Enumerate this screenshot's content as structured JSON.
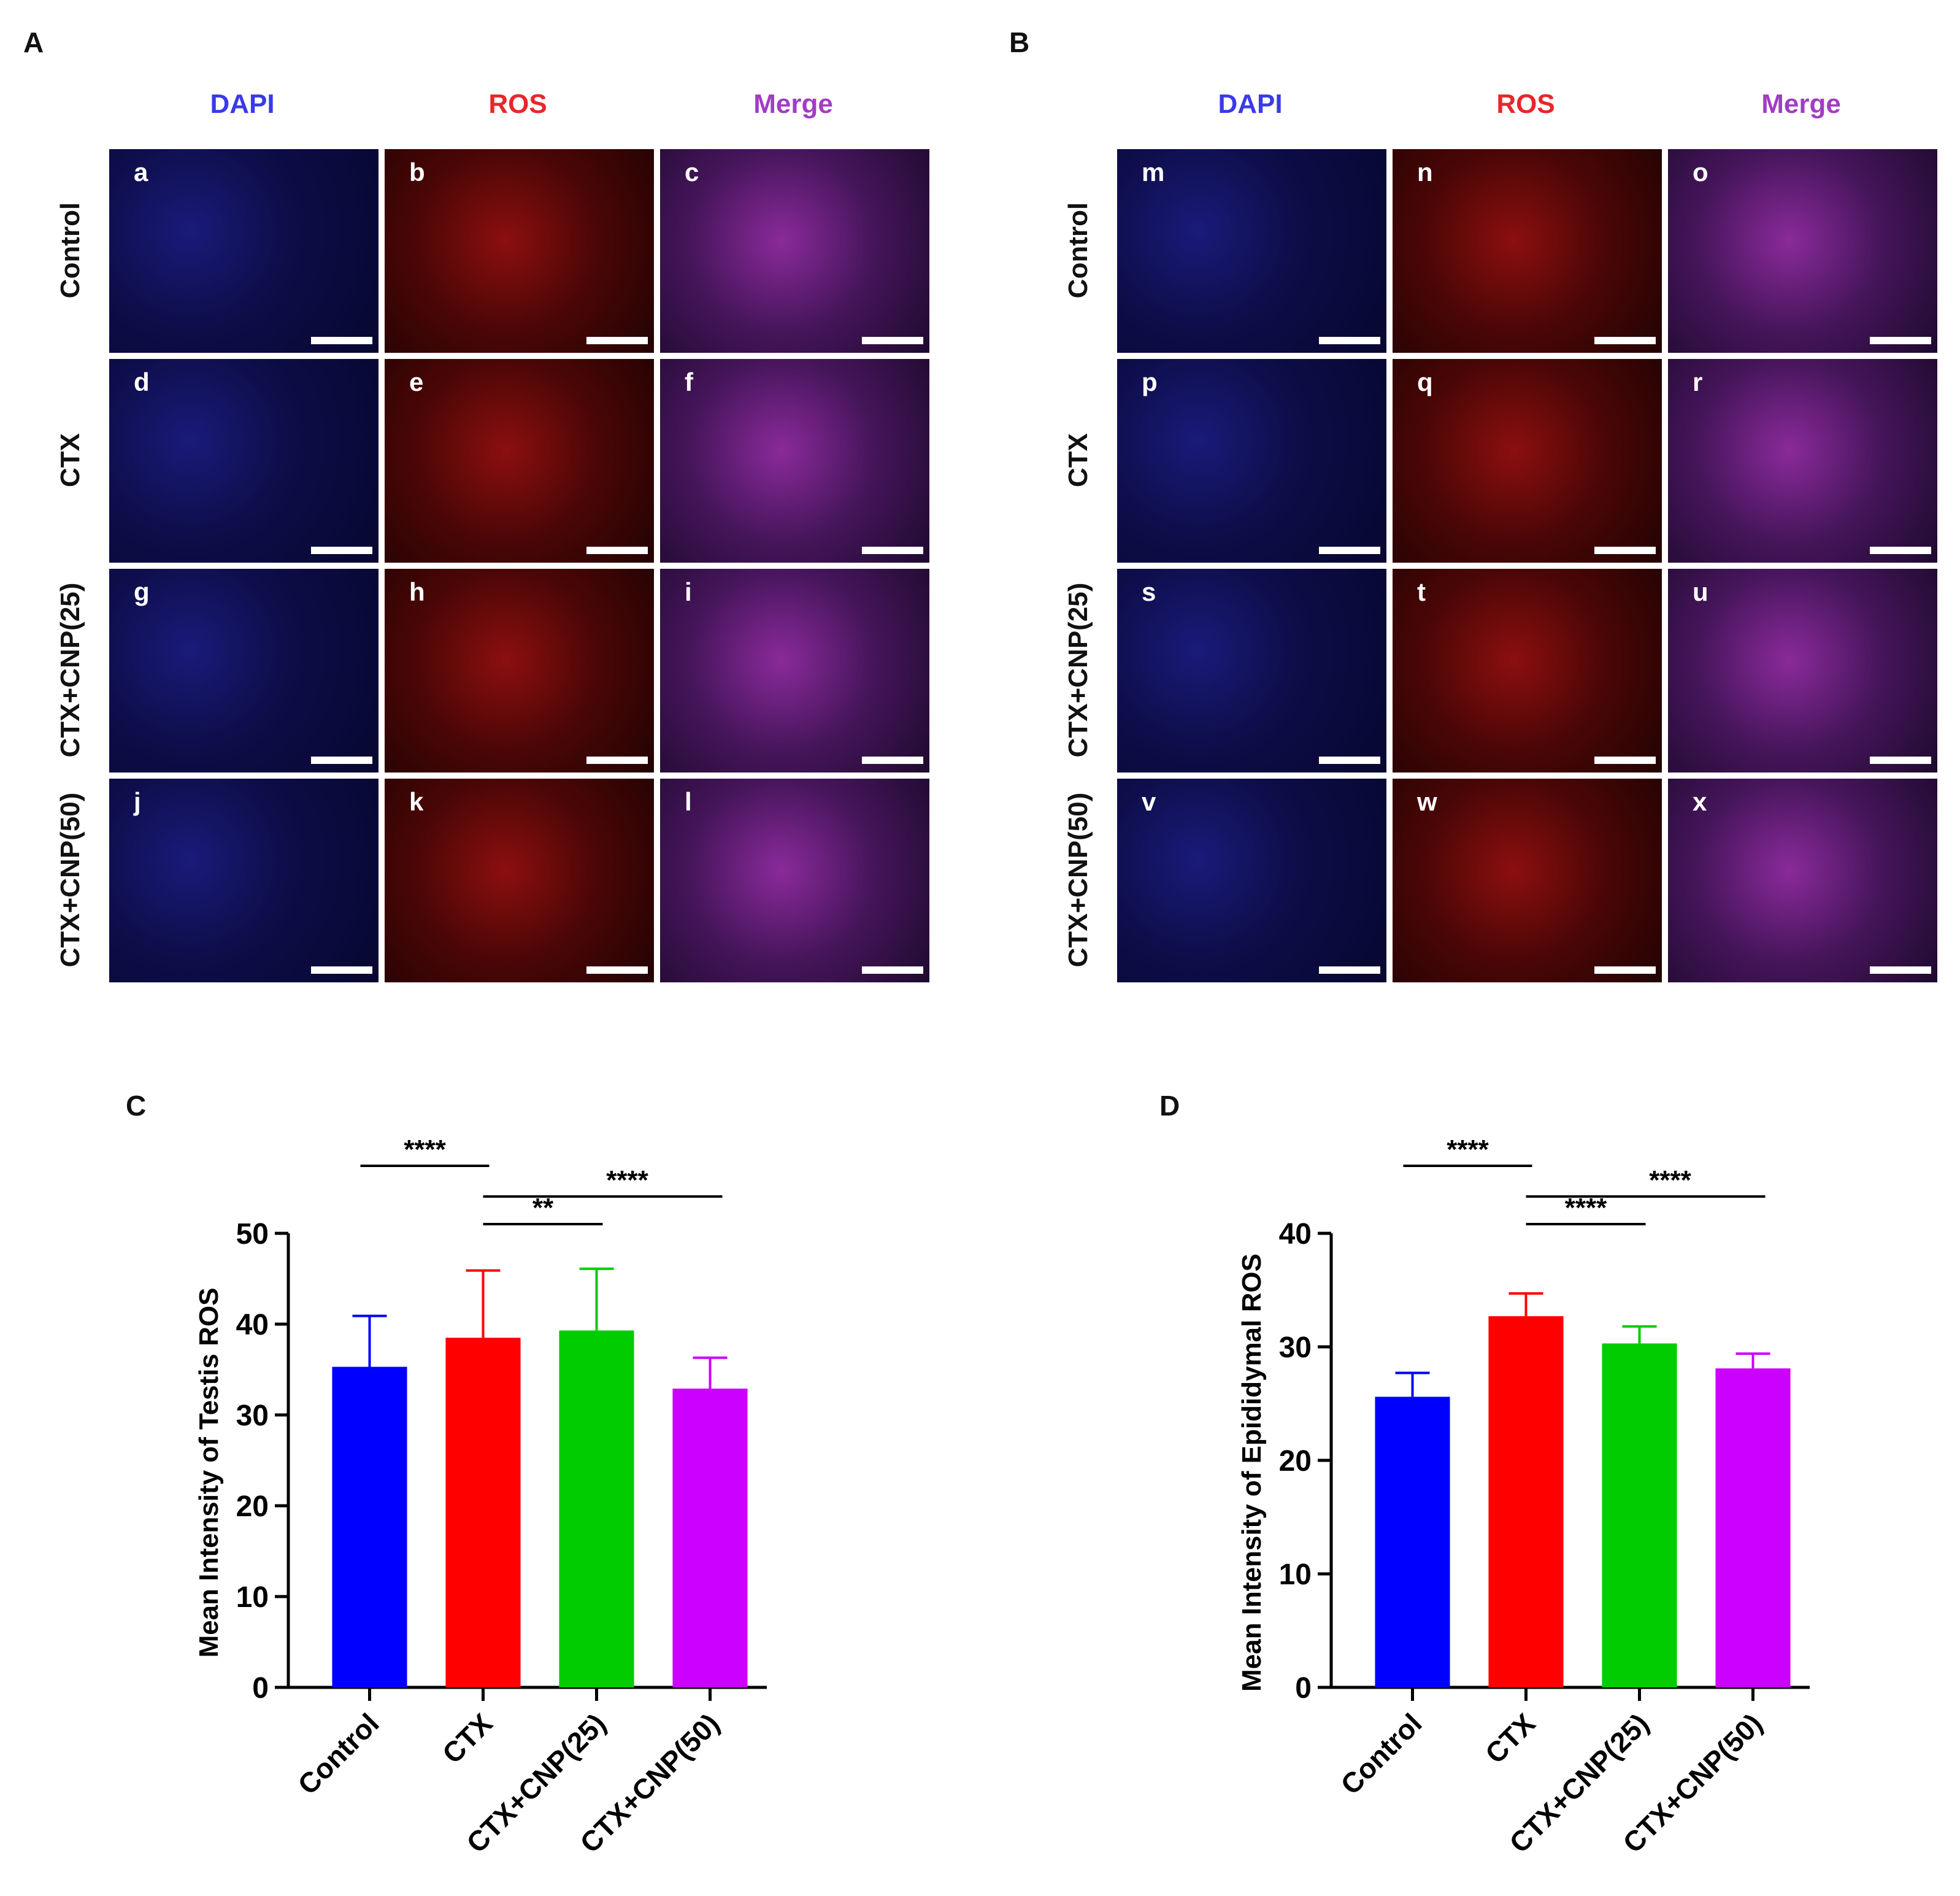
{
  "panels": {
    "A": "A",
    "B": "B",
    "C": "C",
    "D": "D"
  },
  "images": {
    "columns": [
      "DAPI",
      "ROS",
      "Merge"
    ],
    "column_colors": [
      "#3a3ae8",
      "#e8262b",
      "#a23cc4"
    ],
    "rows": [
      "Control",
      "CTX",
      "CTX+CNP(25)",
      "CTX+CNP(50)"
    ],
    "A_letters": [
      "a",
      "b",
      "c",
      "d",
      "e",
      "f",
      "g",
      "h",
      "i",
      "j",
      "k",
      "l"
    ],
    "B_letters": [
      "m",
      "n",
      "o",
      "p",
      "q",
      "r",
      "s",
      "t",
      "u",
      "v",
      "w",
      "x"
    ]
  },
  "chart_data": [
    {
      "type": "bar",
      "panel": "C",
      "categories": [
        "Control",
        "CTX",
        "CTX+CNP(25)",
        "CTX+CNP(50)"
      ],
      "values": [
        35.3,
        38.5,
        39.3,
        32.9
      ],
      "errors": [
        5.6,
        7.4,
        6.8,
        3.4
      ],
      "colors": [
        "#0000ff",
        "#ff0000",
        "#00cc00",
        "#cc00ff"
      ],
      "xlabel": "",
      "ylabel": "Mean Intensity of Testis ROS",
      "ylim": [
        0,
        50
      ],
      "yticks": [
        0,
        10,
        20,
        30,
        40,
        50
      ],
      "significance": [
        {
          "from": 0,
          "to": 1,
          "label": "****",
          "level": 1
        },
        {
          "from": 1,
          "to": 3,
          "label": "****",
          "level": 2
        },
        {
          "from": 1,
          "to": 2,
          "label": "**",
          "level": 3
        }
      ]
    },
    {
      "type": "bar",
      "panel": "D",
      "categories": [
        "Control",
        "CTX",
        "CTX+CNP(25)",
        "CTX+CNP(50)"
      ],
      "values": [
        25.6,
        32.7,
        30.3,
        28.1
      ],
      "errors": [
        2.1,
        2.0,
        1.5,
        1.3
      ],
      "colors": [
        "#0000ff",
        "#ff0000",
        "#00cc00",
        "#cc00ff"
      ],
      "xlabel": "",
      "ylabel": "Mean Intensity of Epididymal ROS",
      "ylim": [
        0,
        40
      ],
      "yticks": [
        0,
        10,
        20,
        30,
        40
      ],
      "significance": [
        {
          "from": 0,
          "to": 1,
          "label": "****",
          "level": 1
        },
        {
          "from": 1,
          "to": 3,
          "label": "****",
          "level": 2
        },
        {
          "from": 1,
          "to": 2,
          "label": "****",
          "level": 3
        }
      ]
    }
  ]
}
